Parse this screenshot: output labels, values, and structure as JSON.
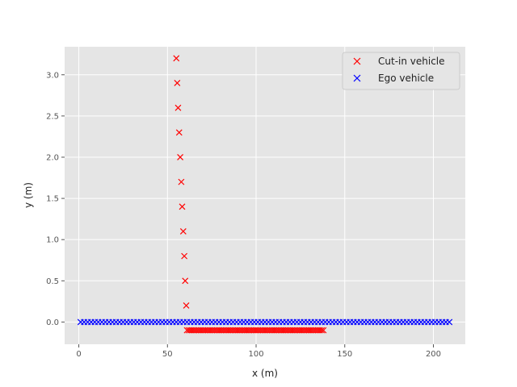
{
  "chart_data": {
    "type": "scatter",
    "title": "",
    "xlabel": "x (m)",
    "ylabel": "y (m)",
    "xlim": [
      -8,
      218
    ],
    "ylim": [
      -0.27,
      3.34
    ],
    "xticks": [
      0,
      50,
      100,
      150,
      200
    ],
    "xtick_labels": [
      "0",
      "50",
      "100",
      "150",
      "200"
    ],
    "yticks": [
      0.0,
      0.5,
      1.0,
      1.5,
      2.0,
      2.5,
      3.0
    ],
    "ytick_labels": [
      "0.0",
      "0.5",
      "1.0",
      "1.5",
      "2.0",
      "2.5",
      "3.0"
    ],
    "grid": true,
    "legend_position": "top-right",
    "marker": "x",
    "colors": {
      "background": "#e5e5e5",
      "grid": "#ffffff",
      "cut_in": "#ff0000",
      "ego": "#0000ff"
    },
    "series": [
      {
        "name": "Cut-in vehicle",
        "color": "#ff0000",
        "points": [
          [
            55.0,
            3.2
          ],
          [
            55.5,
            2.9
          ],
          [
            56.0,
            2.6
          ],
          [
            56.6,
            2.3
          ],
          [
            57.2,
            2.0
          ],
          [
            57.8,
            1.7
          ],
          [
            58.3,
            1.4
          ],
          [
            58.9,
            1.1
          ],
          [
            59.5,
            0.8
          ],
          [
            60.0,
            0.5
          ],
          [
            60.6,
            0.2
          ],
          [
            61,
            -0.1
          ],
          [
            62,
            -0.1
          ],
          [
            63,
            -0.1
          ],
          [
            64,
            -0.1
          ],
          [
            65,
            -0.1
          ],
          [
            66,
            -0.1
          ],
          [
            67,
            -0.1
          ],
          [
            68,
            -0.1
          ],
          [
            69,
            -0.1
          ],
          [
            70,
            -0.1
          ],
          [
            71,
            -0.1
          ],
          [
            72,
            -0.1
          ],
          [
            73,
            -0.1
          ],
          [
            74,
            -0.1
          ],
          [
            75,
            -0.1
          ],
          [
            76,
            -0.1
          ],
          [
            77,
            -0.1
          ],
          [
            78,
            -0.1
          ],
          [
            79,
            -0.1
          ],
          [
            80,
            -0.1
          ],
          [
            81,
            -0.1
          ],
          [
            82,
            -0.1
          ],
          [
            83,
            -0.1
          ],
          [
            84,
            -0.1
          ],
          [
            85,
            -0.1
          ],
          [
            86,
            -0.1
          ],
          [
            87,
            -0.1
          ],
          [
            88,
            -0.1
          ],
          [
            89,
            -0.1
          ],
          [
            90,
            -0.1
          ],
          [
            91,
            -0.1
          ],
          [
            92,
            -0.1
          ],
          [
            93,
            -0.1
          ],
          [
            94,
            -0.1
          ],
          [
            95,
            -0.1
          ],
          [
            96,
            -0.1
          ],
          [
            97,
            -0.1
          ],
          [
            98,
            -0.1
          ],
          [
            99,
            -0.1
          ],
          [
            100,
            -0.1
          ],
          [
            101,
            -0.1
          ],
          [
            102,
            -0.1
          ],
          [
            103,
            -0.1
          ],
          [
            104,
            -0.1
          ],
          [
            105,
            -0.1
          ],
          [
            106,
            -0.1
          ],
          [
            107,
            -0.1
          ],
          [
            108,
            -0.1
          ],
          [
            109,
            -0.1
          ],
          [
            110,
            -0.1
          ],
          [
            111,
            -0.1
          ],
          [
            112,
            -0.1
          ],
          [
            113,
            -0.1
          ],
          [
            114,
            -0.1
          ],
          [
            115,
            -0.1
          ],
          [
            116,
            -0.1
          ],
          [
            117,
            -0.1
          ],
          [
            118,
            -0.1
          ],
          [
            119,
            -0.1
          ],
          [
            120,
            -0.1
          ],
          [
            121,
            -0.1
          ],
          [
            122,
            -0.1
          ],
          [
            123,
            -0.1
          ],
          [
            124,
            -0.1
          ],
          [
            125,
            -0.1
          ],
          [
            126,
            -0.1
          ],
          [
            127,
            -0.1
          ],
          [
            128,
            -0.1
          ],
          [
            129,
            -0.1
          ],
          [
            130,
            -0.1
          ],
          [
            131,
            -0.1
          ],
          [
            132,
            -0.1
          ],
          [
            133,
            -0.1
          ],
          [
            134,
            -0.1
          ],
          [
            135,
            -0.1
          ],
          [
            136,
            -0.1
          ],
          [
            137,
            -0.1
          ],
          [
            138,
            -0.1
          ]
        ]
      },
      {
        "name": "Ego vehicle",
        "color": "#0000ff",
        "points": [
          [
            1,
            0
          ],
          [
            3,
            0
          ],
          [
            5,
            0
          ],
          [
            7,
            0
          ],
          [
            9,
            0
          ],
          [
            11,
            0
          ],
          [
            13,
            0
          ],
          [
            15,
            0
          ],
          [
            17,
            0
          ],
          [
            19,
            0
          ],
          [
            21,
            0
          ],
          [
            23,
            0
          ],
          [
            25,
            0
          ],
          [
            27,
            0
          ],
          [
            29,
            0
          ],
          [
            31,
            0
          ],
          [
            33,
            0
          ],
          [
            35,
            0
          ],
          [
            37,
            0
          ],
          [
            39,
            0
          ],
          [
            41,
            0
          ],
          [
            43,
            0
          ],
          [
            45,
            0
          ],
          [
            47,
            0
          ],
          [
            49,
            0
          ],
          [
            51,
            0
          ],
          [
            53,
            0
          ],
          [
            55,
            0
          ],
          [
            57,
            0
          ],
          [
            59,
            0
          ],
          [
            61,
            0
          ],
          [
            63,
            0
          ],
          [
            65,
            0
          ],
          [
            67,
            0
          ],
          [
            69,
            0
          ],
          [
            71,
            0
          ],
          [
            73,
            0
          ],
          [
            75,
            0
          ],
          [
            77,
            0
          ],
          [
            79,
            0
          ],
          [
            81,
            0
          ],
          [
            83,
            0
          ],
          [
            85,
            0
          ],
          [
            87,
            0
          ],
          [
            89,
            0
          ],
          [
            91,
            0
          ],
          [
            93,
            0
          ],
          [
            95,
            0
          ],
          [
            97,
            0
          ],
          [
            99,
            0
          ],
          [
            101,
            0
          ],
          [
            103,
            0
          ],
          [
            105,
            0
          ],
          [
            107,
            0
          ],
          [
            109,
            0
          ],
          [
            111,
            0
          ],
          [
            113,
            0
          ],
          [
            115,
            0
          ],
          [
            117,
            0
          ],
          [
            119,
            0
          ],
          [
            121,
            0
          ],
          [
            123,
            0
          ],
          [
            125,
            0
          ],
          [
            127,
            0
          ],
          [
            129,
            0
          ],
          [
            131,
            0
          ],
          [
            133,
            0
          ],
          [
            135,
            0
          ],
          [
            137,
            0
          ],
          [
            139,
            0
          ],
          [
            141,
            0
          ],
          [
            143,
            0
          ],
          [
            145,
            0
          ],
          [
            147,
            0
          ],
          [
            149,
            0
          ],
          [
            151,
            0
          ],
          [
            153,
            0
          ],
          [
            155,
            0
          ],
          [
            157,
            0
          ],
          [
            159,
            0
          ],
          [
            161,
            0
          ],
          [
            163,
            0
          ],
          [
            165,
            0
          ],
          [
            167,
            0
          ],
          [
            169,
            0
          ],
          [
            171,
            0
          ],
          [
            173,
            0
          ],
          [
            175,
            0
          ],
          [
            177,
            0
          ],
          [
            179,
            0
          ],
          [
            181,
            0
          ],
          [
            183,
            0
          ],
          [
            185,
            0
          ],
          [
            187,
            0
          ],
          [
            189,
            0
          ],
          [
            191,
            0
          ],
          [
            193,
            0
          ],
          [
            195,
            0
          ],
          [
            197,
            0
          ],
          [
            199,
            0
          ],
          [
            201,
            0
          ],
          [
            203,
            0
          ],
          [
            205,
            0
          ],
          [
            207,
            0
          ],
          [
            209,
            0
          ]
        ]
      }
    ],
    "legend": [
      "Cut-in vehicle",
      "Ego vehicle"
    ]
  }
}
